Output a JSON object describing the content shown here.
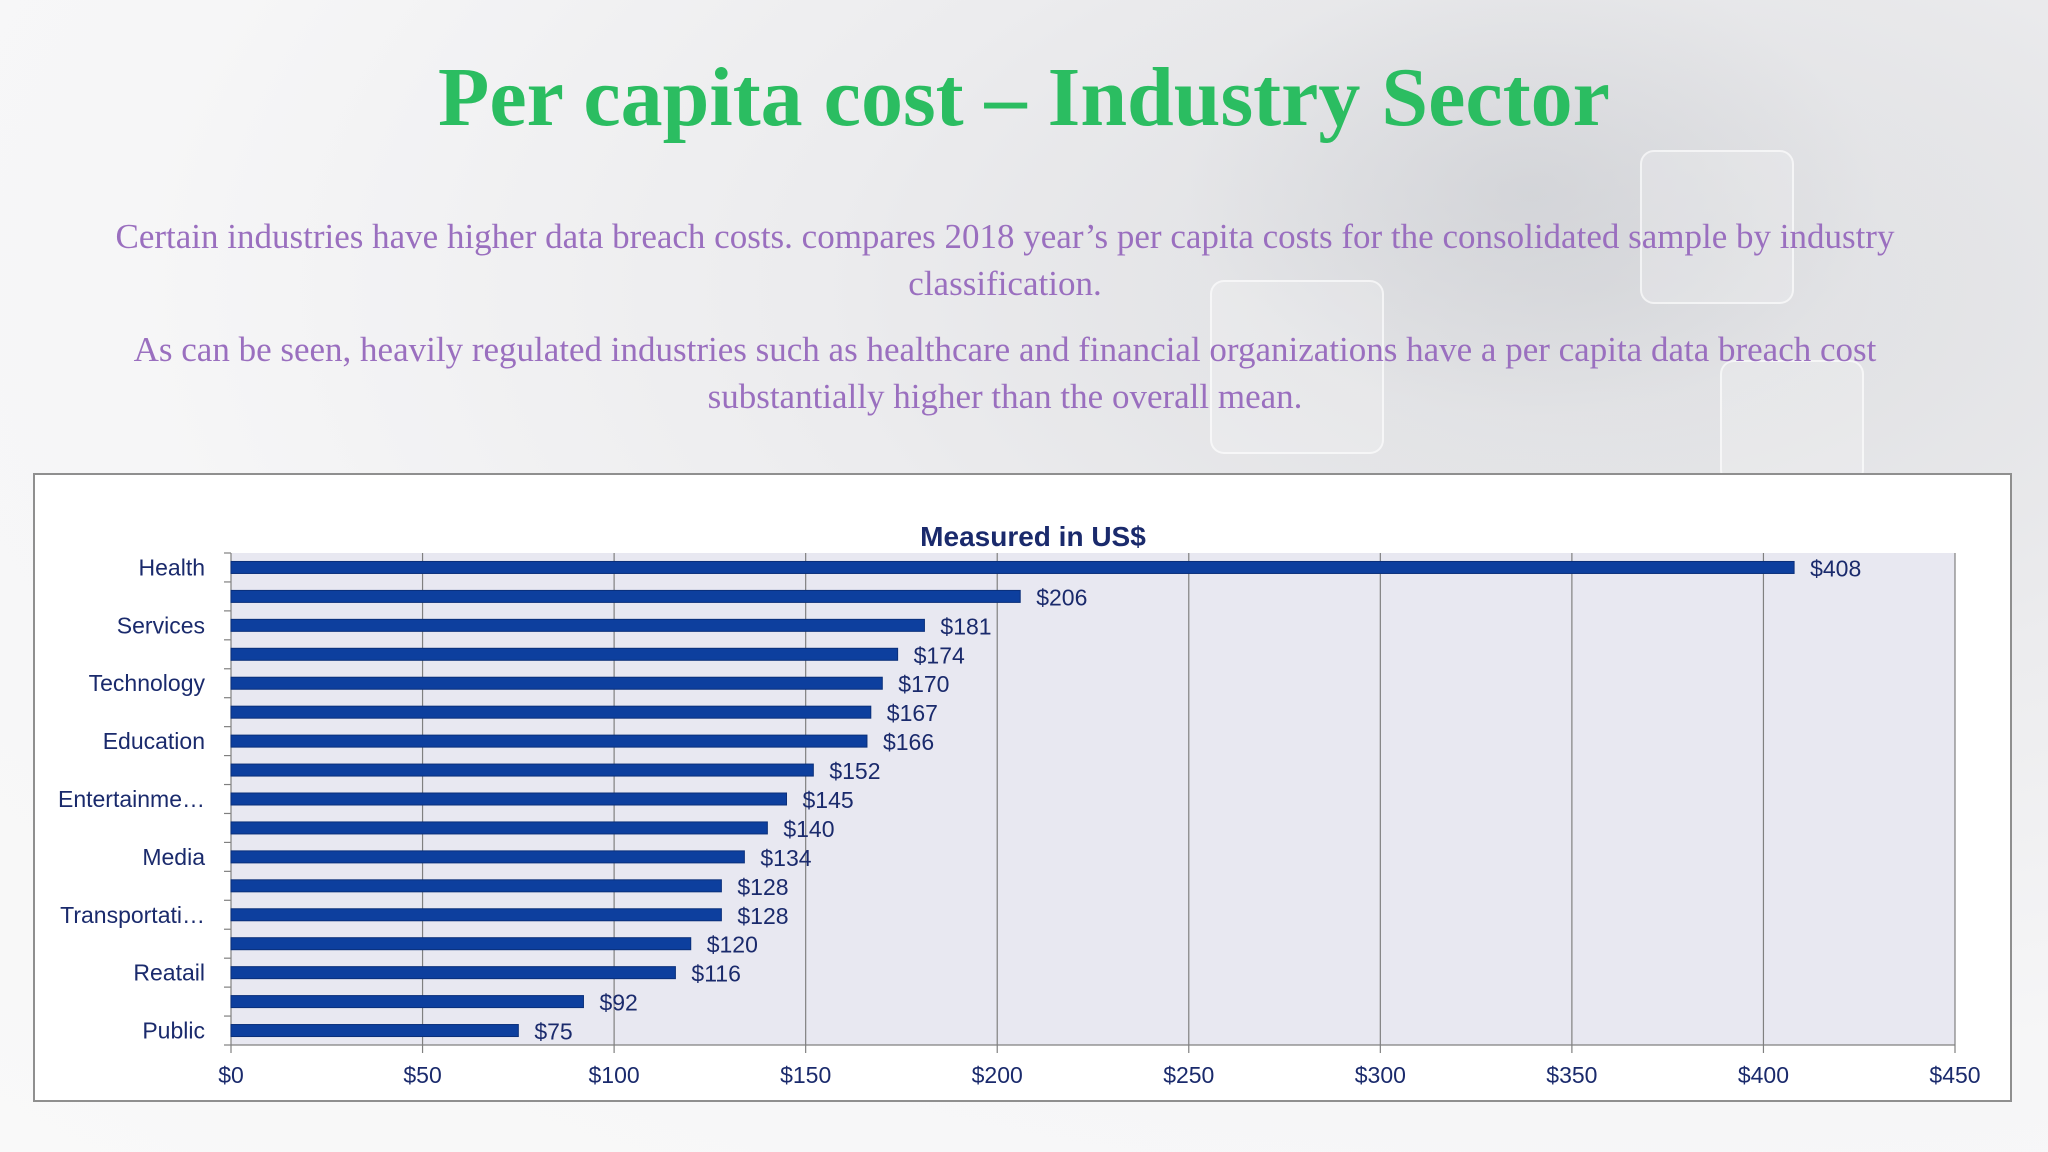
{
  "slide": {
    "title": "Per capita cost – Industry Sector",
    "paragraph_1": "Certain industries have higher data breach costs. compares 2018 year’s per capita costs for the consolidated sample by industry classification.",
    "paragraph_2": "As can be seen, heavily regulated industries such as healthcare and financial organizations have a per capita data breach cost substantially higher than the overall mean."
  },
  "colors": {
    "title": "#2bbd61",
    "text": "#9a6fbf",
    "bar": "#0d3f9e",
    "axis_text": "#1a2a6c",
    "plot_bg": "#e8e8f1",
    "grid": "#808080"
  },
  "chart_data": {
    "type": "bar",
    "orientation": "horizontal",
    "title": "Measured in US$",
    "categories": [
      "Health",
      "",
      "Services",
      "",
      "Technology",
      "",
      "Education",
      "",
      "Entertainme…",
      "",
      "Media",
      "",
      "Transportati…",
      "",
      "Reatail",
      "",
      "Public"
    ],
    "values": [
      408,
      206,
      181,
      174,
      170,
      167,
      166,
      152,
      145,
      140,
      134,
      128,
      128,
      120,
      116,
      92,
      75
    ],
    "data_labels": [
      "$408",
      "$206",
      "$181",
      "$174",
      "$170",
      "$167",
      "$166",
      "$152",
      "$145",
      "$140",
      "$134",
      "$128",
      "$128",
      "$120",
      "$116",
      "$92",
      "$75"
    ],
    "xlim": [
      0,
      450
    ],
    "x_ticks": [
      0,
      50,
      100,
      150,
      200,
      250,
      300,
      350,
      400,
      450
    ],
    "x_tick_labels": [
      "$0",
      "$50",
      "$100",
      "$150",
      "$200",
      "$250",
      "$300",
      "$350",
      "$400",
      "$450"
    ],
    "xlabel": "",
    "ylabel": "",
    "grid": true,
    "legend": "none"
  }
}
